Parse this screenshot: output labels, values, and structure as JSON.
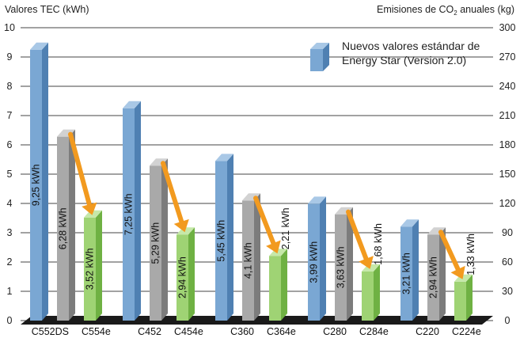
{
  "chart_data": {
    "type": "bar",
    "y_left": {
      "label": "Valores TEC (kWh)",
      "range": [
        0,
        10
      ],
      "ticks": [
        "0",
        "1",
        "2",
        "3",
        "4",
        "5",
        "6",
        "7",
        "8",
        "9",
        "10"
      ]
    },
    "y_right": {
      "label_main": "Emisiones de CO",
      "label_sub": "2",
      "label_tail": " anuales (kg)",
      "range": [
        0,
        300
      ],
      "ticks": [
        "0",
        "30",
        "60",
        "90",
        "120",
        "150",
        "180",
        "210",
        "240",
        "270",
        "300"
      ]
    },
    "grid": true,
    "legend": {
      "position": "top-right",
      "lines": [
        "Nuevos valores estándar de",
        "Energy Star (Version 2.0)"
      ]
    },
    "groups": [
      {
        "labels": [
          "C552DS",
          "C554e"
        ],
        "bars": [
          {
            "kind": "blue",
            "value": 9.25,
            "label": "9,25 kWh",
            "label_pos": "inside"
          },
          {
            "kind": "gray",
            "value": 6.28,
            "label": "6,28 kWh",
            "label_pos": "inside"
          },
          {
            "kind": "green",
            "value": 3.52,
            "label": "3,52 kWh",
            "label_pos": "inside"
          }
        ]
      },
      {
        "labels": [
          "C452",
          "C454e"
        ],
        "bars": [
          {
            "kind": "blue",
            "value": 7.25,
            "label": "7,25 kWh",
            "label_pos": "inside"
          },
          {
            "kind": "gray",
            "value": 5.29,
            "label": "5,29 kWh",
            "label_pos": "inside"
          },
          {
            "kind": "green",
            "value": 2.94,
            "label": "2,94 kWh",
            "label_pos": "inside"
          }
        ]
      },
      {
        "labels": [
          "C360",
          "C364e"
        ],
        "bars": [
          {
            "kind": "blue",
            "value": 5.45,
            "label": "5,45 kWh",
            "label_pos": "inside"
          },
          {
            "kind": "gray",
            "value": 4.1,
            "label": "4,1 kWh",
            "label_pos": "inside"
          },
          {
            "kind": "green",
            "value": 2.21,
            "label": "2,21 kWh",
            "label_pos": "above"
          }
        ]
      },
      {
        "labels": [
          "C280",
          "C284e"
        ],
        "bars": [
          {
            "kind": "blue",
            "value": 3.99,
            "label": "3,99 kWh",
            "label_pos": "inside"
          },
          {
            "kind": "gray",
            "value": 3.63,
            "label": "3,63 kWh",
            "label_pos": "inside"
          },
          {
            "kind": "green",
            "value": 1.68,
            "label": "1,68 kWh",
            "label_pos": "above"
          }
        ]
      },
      {
        "labels": [
          "C220",
          "C224e"
        ],
        "bars": [
          {
            "kind": "blue",
            "value": 3.21,
            "label": "3,21 kWh",
            "label_pos": "inside"
          },
          {
            "kind": "gray",
            "value": 2.94,
            "label": "2,94 kWh",
            "label_pos": "inside"
          },
          {
            "kind": "green",
            "value": 1.33,
            "label": "1,33 kWh",
            "label_pos": "above"
          }
        ]
      }
    ],
    "colors": {
      "blue": {
        "front": "#7aa7d3",
        "side": "#4f80b2",
        "top": "#a9c8e6"
      },
      "gray": {
        "front": "#a9a9a9",
        "side": "#7c7c7c",
        "top": "#d2d2d2"
      },
      "green": {
        "front": "#9fd374",
        "side": "#6fb143",
        "top": "#c6e8a9"
      },
      "arrow": "#f29a1f",
      "grid": "#444444",
      "floor": "#1a1a1a"
    }
  }
}
